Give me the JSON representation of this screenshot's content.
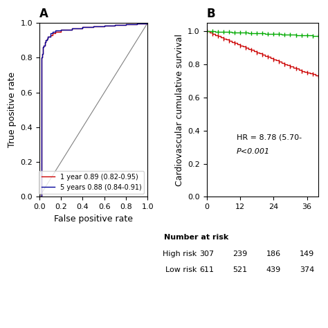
{
  "chart_data": [
    {
      "type": "line",
      "title": "A",
      "xlabel": "False positive rate",
      "ylabel": "True positive rate",
      "xlim": [
        0.0,
        1.0
      ],
      "ylim": [
        0.0,
        1.0
      ],
      "xticks": [
        0.0,
        0.2,
        0.4,
        0.6,
        0.8,
        1.0
      ],
      "yticks": [
        0.0,
        0.2,
        0.4,
        0.6,
        0.8,
        1.0
      ],
      "legend": "lower right",
      "series": [
        {
          "type": "line",
          "color": "gray",
          "x": [
            0.0,
            1.0
          ],
          "values": [
            0.0,
            1.0
          ]
        },
        {
          "name": "1 year 0.89 (0.82-0.95)",
          "type": "step",
          "color": "#cc0000",
          "x": [
            0.0,
            0.02,
            0.025,
            0.03,
            0.035,
            0.04,
            0.05,
            0.06,
            0.07,
            0.08,
            0.1,
            0.12,
            0.15,
            0.2,
            0.3,
            0.4,
            0.5,
            0.6,
            0.7,
            0.8,
            0.9,
            1.0
          ],
          "values": [
            0.0,
            0.8,
            0.82,
            0.84,
            0.86,
            0.87,
            0.89,
            0.9,
            0.91,
            0.92,
            0.93,
            0.94,
            0.95,
            0.96,
            0.97,
            0.975,
            0.98,
            0.985,
            0.99,
            0.993,
            0.997,
            1.0
          ]
        },
        {
          "name": "5 years 0.88 (0.84-0.91)",
          "type": "step",
          "color": "#000099",
          "x": [
            0.0,
            0.02,
            0.025,
            0.03,
            0.035,
            0.04,
            0.05,
            0.06,
            0.07,
            0.08,
            0.1,
            0.12,
            0.15,
            0.2,
            0.3,
            0.4,
            0.5,
            0.6,
            0.7,
            0.8,
            0.9,
            1.0
          ],
          "values": [
            0.0,
            0.8,
            0.82,
            0.84,
            0.86,
            0.87,
            0.89,
            0.9,
            0.91,
            0.92,
            0.94,
            0.95,
            0.955,
            0.962,
            0.97,
            0.976,
            0.981,
            0.985,
            0.989,
            0.993,
            0.997,
            1.0
          ]
        }
      ]
    },
    {
      "type": "step",
      "title": "B",
      "ylabel": "Cardiovascular cumulative survival",
      "xlim": [
        0,
        40
      ],
      "ylim": [
        0.0,
        1.05
      ],
      "xticks": [
        0,
        12,
        24,
        36
      ],
      "yticks": [
        0.0,
        0.2,
        0.4,
        0.6,
        0.8,
        1.0
      ],
      "annotations": [
        "HR = 8.78 (5.70-",
        "P<0.001"
      ],
      "series": [
        {
          "type": "step",
          "color": "#cc0000",
          "marker": "|",
          "x": [
            0,
            1,
            2,
            3,
            4,
            5,
            6,
            7,
            8,
            9,
            10,
            11,
            12,
            13,
            14,
            15,
            16,
            17,
            18,
            19,
            20,
            21,
            22,
            23,
            24,
            25,
            26,
            27,
            28,
            29,
            30,
            31,
            32,
            33,
            34,
            35,
            36,
            37,
            38,
            39,
            40
          ],
          "values": [
            1.0,
            0.992,
            0.984,
            0.977,
            0.97,
            0.963,
            0.956,
            0.949,
            0.942,
            0.935,
            0.928,
            0.921,
            0.914,
            0.907,
            0.9,
            0.893,
            0.886,
            0.879,
            0.872,
            0.865,
            0.858,
            0.851,
            0.844,
            0.837,
            0.83,
            0.823,
            0.816,
            0.809,
            0.802,
            0.795,
            0.788,
            0.781,
            0.774,
            0.767,
            0.76,
            0.755,
            0.75,
            0.745,
            0.74,
            0.735,
            0.73
          ],
          "censored": [
            0,
            2,
            4,
            6,
            8,
            10,
            12,
            14,
            16,
            18,
            20,
            22,
            24,
            26,
            28,
            30,
            32,
            34,
            36,
            38,
            40
          ]
        },
        {
          "type": "step",
          "color": "#00aa00",
          "marker": "|",
          "x": [
            0,
            1,
            2,
            3,
            4,
            5,
            6,
            7,
            8,
            9,
            10,
            11,
            12,
            13,
            14,
            15,
            16,
            17,
            18,
            19,
            20,
            21,
            22,
            23,
            24,
            25,
            26,
            27,
            28,
            29,
            30,
            31,
            32,
            33,
            34,
            35,
            36,
            37,
            38,
            39,
            40
          ],
          "values": [
            1.0,
            0.9993,
            0.9986,
            0.9979,
            0.9972,
            0.9965,
            0.9958,
            0.9951,
            0.9944,
            0.9937,
            0.993,
            0.9923,
            0.9916,
            0.9909,
            0.9902,
            0.9895,
            0.9888,
            0.9881,
            0.9874,
            0.9867,
            0.986,
            0.9853,
            0.9846,
            0.9839,
            0.9832,
            0.9825,
            0.9818,
            0.9811,
            0.9804,
            0.9797,
            0.979,
            0.9783,
            0.9776,
            0.9769,
            0.9762,
            0.9755,
            0.9748,
            0.9741,
            0.9734,
            0.9727,
            0.972
          ],
          "censored": [
            0,
            2,
            4,
            6,
            8,
            10,
            12,
            14,
            16,
            18,
            20,
            22,
            24,
            26,
            28,
            30,
            32,
            34,
            36,
            38,
            40
          ]
        }
      ],
      "number_at_risk": {
        "title": "Number at risk",
        "timepoints": [
          0,
          12,
          24,
          36
        ],
        "rows": [
          {
            "label": "High risk",
            "values": [
              307,
              239,
              186,
              149
            ]
          },
          {
            "label": "Low risk",
            "values": [
              611,
              521,
              439,
              374
            ]
          }
        ]
      }
    }
  ]
}
